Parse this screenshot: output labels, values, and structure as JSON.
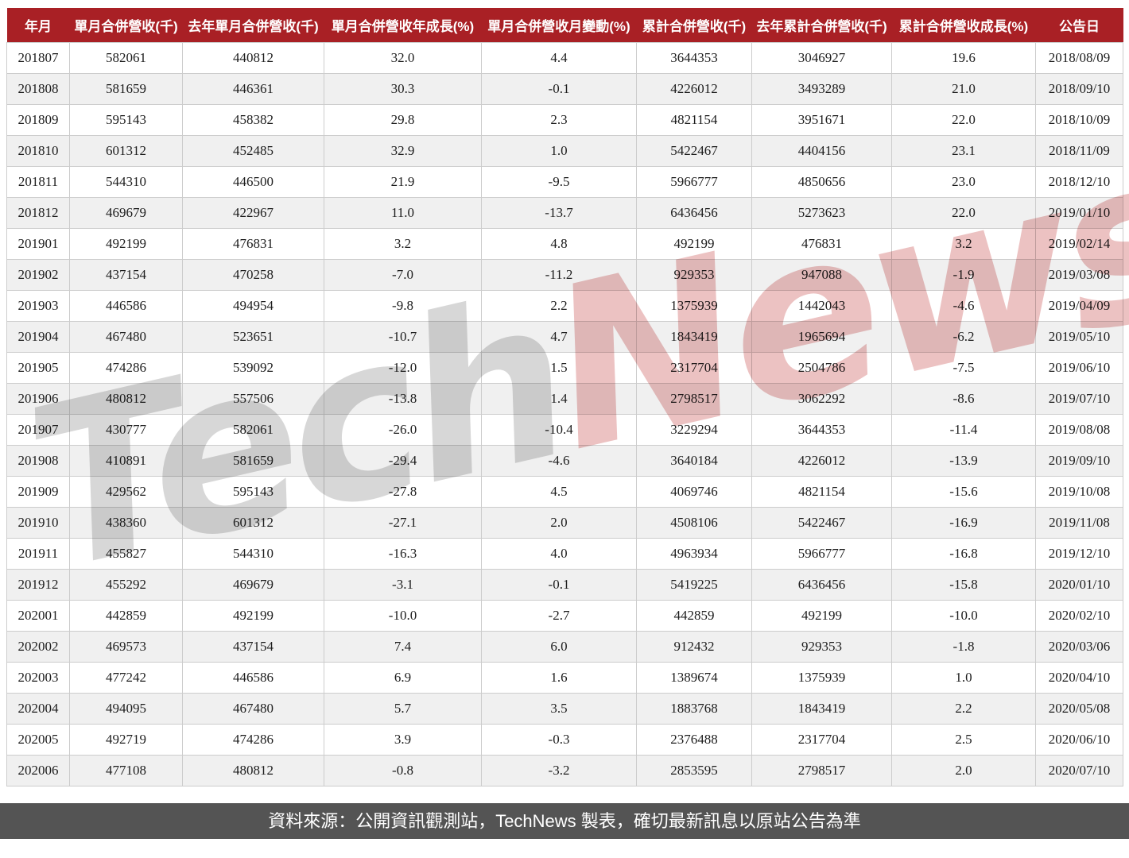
{
  "chart_data": {
    "type": "table",
    "columns": [
      "年月",
      "單月合併營收(千)",
      "去年單月合併營收(千)",
      "單月合併營收年成長(%)",
      "單月合併營收月變動(%)",
      "累計合併營收(千)",
      "去年累計合併營收(千)",
      "累計合併營收成長(%)",
      "公告日"
    ],
    "rows": [
      [
        "201807",
        "582061",
        "440812",
        "32.0",
        "4.4",
        "3644353",
        "3046927",
        "19.6",
        "2018/08/09"
      ],
      [
        "201808",
        "581659",
        "446361",
        "30.3",
        "-0.1",
        "4226012",
        "3493289",
        "21.0",
        "2018/09/10"
      ],
      [
        "201809",
        "595143",
        "458382",
        "29.8",
        "2.3",
        "4821154",
        "3951671",
        "22.0",
        "2018/10/09"
      ],
      [
        "201810",
        "601312",
        "452485",
        "32.9",
        "1.0",
        "5422467",
        "4404156",
        "23.1",
        "2018/11/09"
      ],
      [
        "201811",
        "544310",
        "446500",
        "21.9",
        "-9.5",
        "5966777",
        "4850656",
        "23.0",
        "2018/12/10"
      ],
      [
        "201812",
        "469679",
        "422967",
        "11.0",
        "-13.7",
        "6436456",
        "5273623",
        "22.0",
        "2019/01/10"
      ],
      [
        "201901",
        "492199",
        "476831",
        "3.2",
        "4.8",
        "492199",
        "476831",
        "3.2",
        "2019/02/14"
      ],
      [
        "201902",
        "437154",
        "470258",
        "-7.0",
        "-11.2",
        "929353",
        "947088",
        "-1.9",
        "2019/03/08"
      ],
      [
        "201903",
        "446586",
        "494954",
        "-9.8",
        "2.2",
        "1375939",
        "1442043",
        "-4.6",
        "2019/04/09"
      ],
      [
        "201904",
        "467480",
        "523651",
        "-10.7",
        "4.7",
        "1843419",
        "1965694",
        "-6.2",
        "2019/05/10"
      ],
      [
        "201905",
        "474286",
        "539092",
        "-12.0",
        "1.5",
        "2317704",
        "2504786",
        "-7.5",
        "2019/06/10"
      ],
      [
        "201906",
        "480812",
        "557506",
        "-13.8",
        "1.4",
        "2798517",
        "3062292",
        "-8.6",
        "2019/07/10"
      ],
      [
        "201907",
        "430777",
        "582061",
        "-26.0",
        "-10.4",
        "3229294",
        "3644353",
        "-11.4",
        "2019/08/08"
      ],
      [
        "201908",
        "410891",
        "581659",
        "-29.4",
        "-4.6",
        "3640184",
        "4226012",
        "-13.9",
        "2019/09/10"
      ],
      [
        "201909",
        "429562",
        "595143",
        "-27.8",
        "4.5",
        "4069746",
        "4821154",
        "-15.6",
        "2019/10/08"
      ],
      [
        "201910",
        "438360",
        "601312",
        "-27.1",
        "2.0",
        "4508106",
        "5422467",
        "-16.9",
        "2019/11/08"
      ],
      [
        "201911",
        "455827",
        "544310",
        "-16.3",
        "4.0",
        "4963934",
        "5966777",
        "-16.8",
        "2019/12/10"
      ],
      [
        "201912",
        "455292",
        "469679",
        "-3.1",
        "-0.1",
        "5419225",
        "6436456",
        "-15.8",
        "2020/01/10"
      ],
      [
        "202001",
        "442859",
        "492199",
        "-10.0",
        "-2.7",
        "442859",
        "492199",
        "-10.0",
        "2020/02/10"
      ],
      [
        "202002",
        "469573",
        "437154",
        "7.4",
        "6.0",
        "912432",
        "929353",
        "-1.8",
        "2020/03/06"
      ],
      [
        "202003",
        "477242",
        "446586",
        "6.9",
        "1.6",
        "1389674",
        "1375939",
        "1.0",
        "2020/04/10"
      ],
      [
        "202004",
        "494095",
        "467480",
        "5.7",
        "3.5",
        "1883768",
        "1843419",
        "2.2",
        "2020/05/08"
      ],
      [
        "202005",
        "492719",
        "474286",
        "3.9",
        "-0.3",
        "2376488",
        "2317704",
        "2.5",
        "2020/06/10"
      ],
      [
        "202006",
        "477108",
        "480812",
        "-0.8",
        "-3.2",
        "2853595",
        "2798517",
        "2.0",
        "2020/07/10"
      ]
    ],
    "title": "",
    "legend": "none",
    "grid": "on"
  },
  "watermark": {
    "part1": "Tech",
    "part2": "News"
  },
  "footer": {
    "text": "資料來源：公開資訊觀測站，TechNews 製表，確切最新訊息以原站公告為準"
  },
  "colors": {
    "header_bg": "#a92025",
    "header_text": "#ffffff",
    "row_alt_bg": "#f0f0f0",
    "footer_bg": "#545454",
    "watermark_gray": "#828282",
    "watermark_red": "#cd5f5f"
  }
}
